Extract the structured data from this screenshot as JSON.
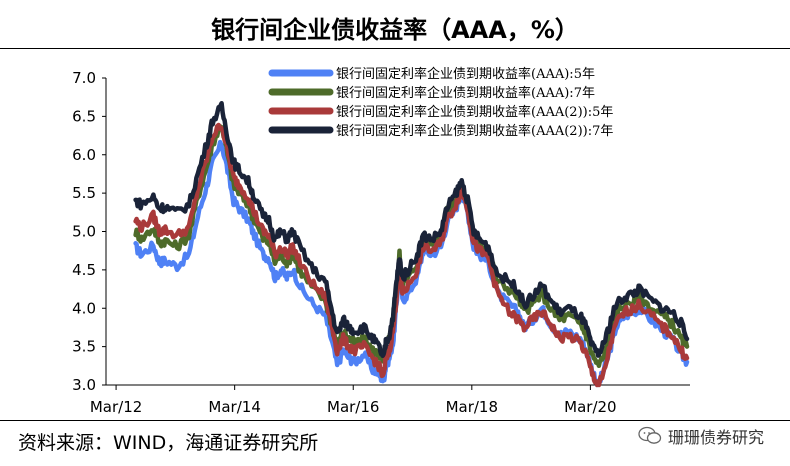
{
  "title": "银行间企业债收益率（AAA，%）",
  "source": "资料来源：WIND，海通证券研究所",
  "watermark": "珊珊债券研究",
  "chart_data": {
    "type": "line",
    "title": "银行间企业债收益率（AAA，%）",
    "ylim": [
      3.0,
      7.0
    ],
    "yticks": [
      "7.0",
      "6.5",
      "6.0",
      "5.5",
      "5.0",
      "4.5",
      "4.0",
      "3.5",
      "3.0"
    ],
    "xticks": [
      "Mar/12",
      "Mar/14",
      "Mar/16",
      "Mar/18",
      "Mar/20"
    ],
    "xlim": [
      2012.0,
      2021.85
    ],
    "legend_position": "top-right",
    "grid": false,
    "series": [
      {
        "name": "银行间固定利率企业债到期收益率(AAA):5年",
        "color": "#4f81f5",
        "points": [
          [
            2012.5,
            4.8
          ],
          [
            2012.6,
            4.7
          ],
          [
            2012.8,
            4.82
          ],
          [
            2012.9,
            4.6
          ],
          [
            2013.0,
            4.62
          ],
          [
            2013.2,
            4.55
          ],
          [
            2013.4,
            4.7
          ],
          [
            2013.55,
            5.2
          ],
          [
            2013.7,
            5.6
          ],
          [
            2013.8,
            5.9
          ],
          [
            2013.95,
            6.15
          ],
          [
            2014.05,
            5.8
          ],
          [
            2014.15,
            5.4
          ],
          [
            2014.25,
            5.3
          ],
          [
            2014.4,
            5.15
          ],
          [
            2014.5,
            4.95
          ],
          [
            2014.65,
            4.7
          ],
          [
            2014.75,
            4.65
          ],
          [
            2014.85,
            4.4
          ],
          [
            2014.95,
            4.5
          ],
          [
            2015.05,
            4.4
          ],
          [
            2015.15,
            4.5
          ],
          [
            2015.3,
            4.25
          ],
          [
            2015.5,
            4.05
          ],
          [
            2015.7,
            3.9
          ],
          [
            2015.8,
            3.6
          ],
          [
            2015.9,
            3.25
          ],
          [
            2016.0,
            3.45
          ],
          [
            2016.1,
            3.35
          ],
          [
            2016.2,
            3.3
          ],
          [
            2016.35,
            3.4
          ],
          [
            2016.5,
            3.2
          ],
          [
            2016.6,
            3.15
          ],
          [
            2016.68,
            3.05
          ],
          [
            2016.72,
            3.25
          ],
          [
            2016.78,
            3.35
          ],
          [
            2016.85,
            3.6
          ],
          [
            2016.9,
            4.05
          ],
          [
            2016.95,
            4.55
          ],
          [
            2017.0,
            4.1
          ],
          [
            2017.1,
            4.2
          ],
          [
            2017.25,
            4.4
          ],
          [
            2017.35,
            4.75
          ],
          [
            2017.5,
            4.7
          ],
          [
            2017.65,
            4.8
          ],
          [
            2017.75,
            5.1
          ],
          [
            2017.9,
            5.3
          ],
          [
            2018.0,
            5.5
          ],
          [
            2018.1,
            5.25
          ],
          [
            2018.2,
            4.8
          ],
          [
            2018.3,
            4.7
          ],
          [
            2018.45,
            4.6
          ],
          [
            2018.6,
            4.2
          ],
          [
            2018.8,
            4.05
          ],
          [
            2018.95,
            3.95
          ],
          [
            2019.05,
            3.75
          ],
          [
            2019.2,
            3.85
          ],
          [
            2019.35,
            4.0
          ],
          [
            2019.5,
            3.8
          ],
          [
            2019.65,
            3.65
          ],
          [
            2019.8,
            3.7
          ],
          [
            2020.0,
            3.6
          ],
          [
            2020.1,
            3.45
          ],
          [
            2020.2,
            3.2
          ],
          [
            2020.3,
            3.0
          ],
          [
            2020.38,
            3.15
          ],
          [
            2020.5,
            3.45
          ],
          [
            2020.6,
            3.75
          ],
          [
            2020.75,
            3.9
          ],
          [
            2020.9,
            3.95
          ],
          [
            2021.0,
            4.0
          ],
          [
            2021.2,
            3.85
          ],
          [
            2021.4,
            3.7
          ],
          [
            2021.55,
            3.6
          ],
          [
            2021.7,
            3.4
          ],
          [
            2021.8,
            3.3
          ]
        ]
      },
      {
        "name": "银行间固定利率企业债到期收益率(AAA):7年",
        "color": "#4e6b2a",
        "points": [
          [
            2012.5,
            5.0
          ],
          [
            2012.6,
            4.9
          ],
          [
            2012.8,
            5.05
          ],
          [
            2012.9,
            4.85
          ],
          [
            2013.0,
            4.88
          ],
          [
            2013.2,
            4.8
          ],
          [
            2013.4,
            4.95
          ],
          [
            2013.55,
            5.45
          ],
          [
            2013.7,
            5.85
          ],
          [
            2013.8,
            6.15
          ],
          [
            2013.95,
            6.4
          ],
          [
            2014.05,
            6.0
          ],
          [
            2014.15,
            5.6
          ],
          [
            2014.25,
            5.5
          ],
          [
            2014.4,
            5.35
          ],
          [
            2014.5,
            5.15
          ],
          [
            2014.65,
            4.9
          ],
          [
            2014.75,
            4.85
          ],
          [
            2014.85,
            4.6
          ],
          [
            2014.95,
            4.7
          ],
          [
            2015.05,
            4.6
          ],
          [
            2015.15,
            4.7
          ],
          [
            2015.3,
            4.45
          ],
          [
            2015.5,
            4.25
          ],
          [
            2015.7,
            4.1
          ],
          [
            2015.8,
            3.8
          ],
          [
            2015.9,
            3.5
          ],
          [
            2016.0,
            3.7
          ],
          [
            2016.1,
            3.6
          ],
          [
            2016.2,
            3.55
          ],
          [
            2016.35,
            3.6
          ],
          [
            2016.5,
            3.45
          ],
          [
            2016.6,
            3.4
          ],
          [
            2016.68,
            3.3
          ],
          [
            2016.72,
            3.5
          ],
          [
            2016.78,
            3.6
          ],
          [
            2016.85,
            3.85
          ],
          [
            2016.9,
            4.25
          ],
          [
            2016.95,
            4.7
          ],
          [
            2017.0,
            4.3
          ],
          [
            2017.1,
            4.4
          ],
          [
            2017.25,
            4.6
          ],
          [
            2017.35,
            4.9
          ],
          [
            2017.5,
            4.85
          ],
          [
            2017.65,
            4.95
          ],
          [
            2017.75,
            5.25
          ],
          [
            2017.9,
            5.42
          ],
          [
            2018.0,
            5.6
          ],
          [
            2018.1,
            5.35
          ],
          [
            2018.2,
            4.95
          ],
          [
            2018.3,
            4.85
          ],
          [
            2018.45,
            4.75
          ],
          [
            2018.6,
            4.35
          ],
          [
            2018.8,
            4.25
          ],
          [
            2018.95,
            4.15
          ],
          [
            2019.05,
            3.95
          ],
          [
            2019.2,
            4.05
          ],
          [
            2019.35,
            4.2
          ],
          [
            2019.5,
            4.0
          ],
          [
            2019.65,
            3.85
          ],
          [
            2019.8,
            3.9
          ],
          [
            2020.0,
            3.8
          ],
          [
            2020.1,
            3.65
          ],
          [
            2020.2,
            3.4
          ],
          [
            2020.3,
            3.25
          ],
          [
            2020.38,
            3.35
          ],
          [
            2020.5,
            3.65
          ],
          [
            2020.6,
            3.95
          ],
          [
            2020.75,
            4.05
          ],
          [
            2020.9,
            4.1
          ],
          [
            2021.0,
            4.15
          ],
          [
            2021.2,
            4.0
          ],
          [
            2021.4,
            3.9
          ],
          [
            2021.55,
            3.8
          ],
          [
            2021.7,
            3.6
          ],
          [
            2021.8,
            3.5
          ]
        ]
      },
      {
        "name": "银行间固定利率企业债到期收益率(AAA(2)):5年",
        "color": "#a93a3a",
        "points": [
          [
            2012.5,
            5.15
          ],
          [
            2012.6,
            5.05
          ],
          [
            2012.8,
            5.2
          ],
          [
            2012.9,
            5.0
          ],
          [
            2013.0,
            5.02
          ],
          [
            2013.2,
            4.95
          ],
          [
            2013.4,
            5.05
          ],
          [
            2013.55,
            5.55
          ],
          [
            2013.7,
            5.95
          ],
          [
            2013.8,
            6.25
          ],
          [
            2013.95,
            6.4
          ],
          [
            2014.05,
            6.05
          ],
          [
            2014.15,
            5.7
          ],
          [
            2014.25,
            5.6
          ],
          [
            2014.4,
            5.45
          ],
          [
            2014.5,
            5.25
          ],
          [
            2014.65,
            5.0
          ],
          [
            2014.75,
            4.95
          ],
          [
            2014.85,
            4.7
          ],
          [
            2014.95,
            4.8
          ],
          [
            2015.05,
            4.7
          ],
          [
            2015.15,
            4.8
          ],
          [
            2015.3,
            4.55
          ],
          [
            2015.5,
            4.3
          ],
          [
            2015.7,
            4.15
          ],
          [
            2015.8,
            3.8
          ],
          [
            2015.9,
            3.45
          ],
          [
            2016.0,
            3.6
          ],
          [
            2016.1,
            3.5
          ],
          [
            2016.2,
            3.45
          ],
          [
            2016.35,
            3.5
          ],
          [
            2016.5,
            3.35
          ],
          [
            2016.6,
            3.25
          ],
          [
            2016.68,
            3.1
          ],
          [
            2016.72,
            3.35
          ],
          [
            2016.78,
            3.45
          ],
          [
            2016.85,
            3.75
          ],
          [
            2016.9,
            4.15
          ],
          [
            2016.95,
            4.6
          ],
          [
            2017.0,
            4.2
          ],
          [
            2017.1,
            4.3
          ],
          [
            2017.25,
            4.5
          ],
          [
            2017.35,
            4.8
          ],
          [
            2017.5,
            4.75
          ],
          [
            2017.65,
            4.85
          ],
          [
            2017.75,
            5.15
          ],
          [
            2017.9,
            5.35
          ],
          [
            2018.0,
            5.55
          ],
          [
            2018.1,
            5.3
          ],
          [
            2018.2,
            4.85
          ],
          [
            2018.3,
            4.75
          ],
          [
            2018.45,
            4.65
          ],
          [
            2018.6,
            4.2
          ],
          [
            2018.8,
            3.95
          ],
          [
            2018.95,
            3.85
          ],
          [
            2019.05,
            3.75
          ],
          [
            2019.2,
            3.85
          ],
          [
            2019.35,
            3.95
          ],
          [
            2019.5,
            3.8
          ],
          [
            2019.65,
            3.6
          ],
          [
            2019.8,
            3.65
          ],
          [
            2020.0,
            3.55
          ],
          [
            2020.1,
            3.4
          ],
          [
            2020.2,
            3.15
          ],
          [
            2020.3,
            3.0
          ],
          [
            2020.38,
            3.1
          ],
          [
            2020.5,
            3.5
          ],
          [
            2020.6,
            3.8
          ],
          [
            2020.75,
            3.95
          ],
          [
            2020.9,
            4.0
          ],
          [
            2021.0,
            4.05
          ],
          [
            2021.2,
            3.9
          ],
          [
            2021.4,
            3.75
          ],
          [
            2021.55,
            3.65
          ],
          [
            2021.7,
            3.45
          ],
          [
            2021.8,
            3.35
          ]
        ]
      },
      {
        "name": "银行间固定利率企业债到期收益率(AAA(2)):7年",
        "color": "#1a2338",
        "points": [
          [
            2012.5,
            5.4
          ],
          [
            2012.6,
            5.35
          ],
          [
            2012.8,
            5.45
          ],
          [
            2012.9,
            5.3
          ],
          [
            2013.0,
            5.32
          ],
          [
            2013.2,
            5.25
          ],
          [
            2013.4,
            5.35
          ],
          [
            2013.55,
            5.75
          ],
          [
            2013.7,
            6.15
          ],
          [
            2013.8,
            6.45
          ],
          [
            2013.95,
            6.62
          ],
          [
            2014.05,
            6.25
          ],
          [
            2014.15,
            5.9
          ],
          [
            2014.25,
            5.8
          ],
          [
            2014.4,
            5.65
          ],
          [
            2014.5,
            5.45
          ],
          [
            2014.65,
            5.2
          ],
          [
            2014.75,
            5.15
          ],
          [
            2014.85,
            4.9
          ],
          [
            2014.95,
            5.0
          ],
          [
            2015.05,
            4.9
          ],
          [
            2015.15,
            5.0
          ],
          [
            2015.3,
            4.75
          ],
          [
            2015.5,
            4.5
          ],
          [
            2015.7,
            4.35
          ],
          [
            2015.8,
            4.0
          ],
          [
            2015.9,
            3.65
          ],
          [
            2016.0,
            3.85
          ],
          [
            2016.1,
            3.75
          ],
          [
            2016.2,
            3.7
          ],
          [
            2016.35,
            3.75
          ],
          [
            2016.5,
            3.6
          ],
          [
            2016.6,
            3.5
          ],
          [
            2016.68,
            3.35
          ],
          [
            2016.72,
            3.55
          ],
          [
            2016.78,
            3.65
          ],
          [
            2016.85,
            3.95
          ],
          [
            2016.9,
            4.35
          ],
          [
            2016.95,
            4.65
          ],
          [
            2017.0,
            4.4
          ],
          [
            2017.1,
            4.5
          ],
          [
            2017.25,
            4.7
          ],
          [
            2017.35,
            4.95
          ],
          [
            2017.5,
            4.9
          ],
          [
            2017.65,
            5.0
          ],
          [
            2017.75,
            5.3
          ],
          [
            2017.9,
            5.5
          ],
          [
            2018.0,
            5.65
          ],
          [
            2018.1,
            5.4
          ],
          [
            2018.2,
            5.0
          ],
          [
            2018.3,
            4.9
          ],
          [
            2018.45,
            4.8
          ],
          [
            2018.6,
            4.45
          ],
          [
            2018.8,
            4.35
          ],
          [
            2018.95,
            4.25
          ],
          [
            2019.05,
            4.05
          ],
          [
            2019.2,
            4.15
          ],
          [
            2019.35,
            4.3
          ],
          [
            2019.5,
            4.1
          ],
          [
            2019.65,
            3.95
          ],
          [
            2019.8,
            4.0
          ],
          [
            2020.0,
            3.9
          ],
          [
            2020.1,
            3.75
          ],
          [
            2020.2,
            3.5
          ],
          [
            2020.3,
            3.4
          ],
          [
            2020.38,
            3.5
          ],
          [
            2020.5,
            3.8
          ],
          [
            2020.6,
            4.05
          ],
          [
            2020.75,
            4.15
          ],
          [
            2020.9,
            4.2
          ],
          [
            2021.0,
            4.25
          ],
          [
            2021.2,
            4.1
          ],
          [
            2021.4,
            4.0
          ],
          [
            2021.55,
            3.95
          ],
          [
            2021.7,
            3.8
          ],
          [
            2021.8,
            3.6
          ]
        ]
      }
    ]
  }
}
